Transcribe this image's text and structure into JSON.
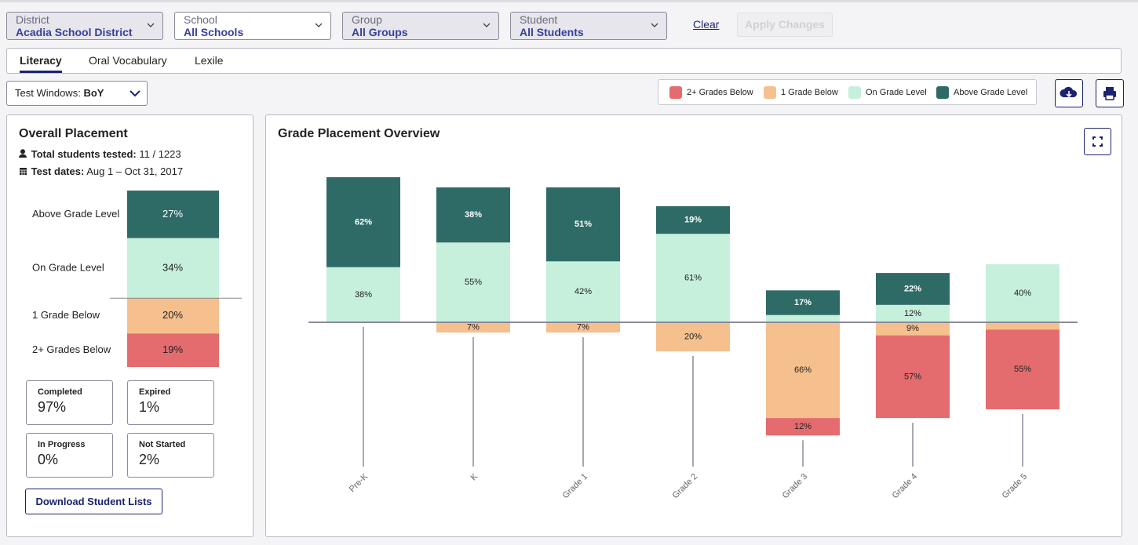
{
  "filters": [
    {
      "label": "District",
      "value": "Acadia School District"
    },
    {
      "label": "School",
      "value": "All Schools"
    },
    {
      "label": "Group",
      "value": "All Groups"
    },
    {
      "label": "Student",
      "value": "All Students"
    }
  ],
  "clear": "Clear",
  "apply": "Apply Changes",
  "tabs": [
    "Literacy",
    "Oral Vocabulary",
    "Lexile"
  ],
  "test_windows": {
    "label": "Test Windows:",
    "value": "BoY"
  },
  "overall": {
    "title": "Overall Placement",
    "total_label": "Total students tested:",
    "total_value": "11 / 1223",
    "dates_label": "Test dates:",
    "dates_value": "Aug 1 – Oct 31, 2017",
    "categories": [
      "Above Grade Level",
      "On Grade Level",
      "1 Grade Below",
      "2+ Grades Below"
    ],
    "values": [
      27,
      34,
      20,
      19
    ],
    "value_labels": [
      "27%",
      "34%",
      "20%",
      "19%"
    ],
    "colors": [
      "#2e6b66",
      "#c6f0dc",
      "#f5c08e",
      "#e46c6f"
    ]
  },
  "status": [
    {
      "label": "Completed",
      "value": "97%"
    },
    {
      "label": "Expired",
      "value": "1%"
    },
    {
      "label": "In Progress",
      "value": "0%"
    },
    {
      "label": "Not Started",
      "value": "2%"
    }
  ],
  "download": "Download Student Lists",
  "chart_data": {
    "type": "bar",
    "title": "Grade Placement Overview",
    "categories": [
      "Pre-K",
      "K",
      "Grade 1",
      "Grade 2",
      "Grade 3",
      "Grade 4",
      "Grade 5"
    ],
    "series": [
      {
        "name": "2+ Grades Below",
        "color": "#e46c6f",
        "values": [
          0,
          0,
          0,
          0,
          12,
          57,
          55
        ],
        "value_labels": [
          null,
          null,
          null,
          null,
          "12%",
          "57%",
          "55%"
        ]
      },
      {
        "name": "1 Grade Below",
        "color": "#f5c08e",
        "values": [
          0,
          7,
          7,
          20,
          66,
          9,
          5
        ],
        "value_labels": [
          null,
          "7%",
          "7%",
          "20%",
          "66%",
          "9%",
          null
        ]
      },
      {
        "name": "On Grade Level",
        "color": "#c6f0dc",
        "values": [
          38,
          55,
          42,
          61,
          5,
          12,
          40
        ],
        "value_labels": [
          "38%",
          "55%",
          "42%",
          "61%",
          null,
          "12%",
          "40%"
        ]
      },
      {
        "name": "Above Grade Level",
        "color": "#2e6b66",
        "values": [
          62,
          38,
          51,
          19,
          17,
          22,
          0
        ],
        "value_labels": [
          "62%",
          "38%",
          "51%",
          "19%",
          "17%",
          "22%",
          null
        ]
      }
    ]
  }
}
